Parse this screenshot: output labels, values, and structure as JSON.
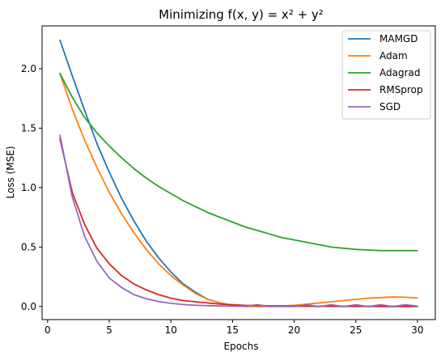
{
  "chart_data": {
    "type": "line",
    "title": "Minimizing f(x, y) = x² + y²",
    "xlabel": "Epochs",
    "ylabel": "Loss (MSE)",
    "xlim": [
      -0.45,
      31.45
    ],
    "ylim": [
      -0.11,
      2.36
    ],
    "xticks": [
      0,
      5,
      10,
      15,
      20,
      25,
      30
    ],
    "yticks": [
      0.0,
      0.5,
      1.0,
      1.5,
      2.0
    ],
    "xtick_labels": [
      "0",
      "5",
      "10",
      "15",
      "20",
      "25",
      "30"
    ],
    "ytick_labels": [
      "0.0",
      "0.5",
      "1.0",
      "1.5",
      "2.0"
    ],
    "grid": false,
    "legend_position": "top-right",
    "x": [
      1,
      2,
      3,
      4,
      5,
      6,
      7,
      8,
      9,
      10,
      11,
      12,
      13,
      14,
      15,
      16,
      17,
      18,
      19,
      20,
      21,
      22,
      23,
      24,
      25,
      26,
      27,
      28,
      29,
      30
    ],
    "series": [
      {
        "name": "MAMGD",
        "color": "#1f77b4",
        "values": [
          2.24,
          1.94,
          1.65,
          1.37,
          1.13,
          0.91,
          0.72,
          0.55,
          0.41,
          0.29,
          0.19,
          0.12,
          0.06,
          0.03,
          0.01,
          0.005,
          0.01,
          0.003,
          0.004,
          0.002,
          0.003,
          0.0,
          0.006,
          0.0,
          0.008,
          0.0,
          0.008,
          0.0,
          0.008,
          0.003
        ]
      },
      {
        "name": "Adam",
        "color": "#ff7f0e",
        "values": [
          1.96,
          1.66,
          1.4,
          1.17,
          0.96,
          0.78,
          0.62,
          0.48,
          0.36,
          0.26,
          0.18,
          0.11,
          0.06,
          0.03,
          0.01,
          0.0,
          0.0,
          0.0,
          0.005,
          0.01,
          0.02,
          0.03,
          0.04,
          0.05,
          0.06,
          0.07,
          0.075,
          0.08,
          0.078,
          0.072
        ]
      },
      {
        "name": "Adagrad",
        "color": "#2ca02c",
        "values": [
          1.96,
          1.76,
          1.59,
          1.46,
          1.35,
          1.25,
          1.16,
          1.08,
          1.01,
          0.95,
          0.89,
          0.84,
          0.79,
          0.75,
          0.71,
          0.67,
          0.64,
          0.61,
          0.58,
          0.56,
          0.54,
          0.52,
          0.5,
          0.49,
          0.48,
          0.475,
          0.47,
          0.47,
          0.47,
          0.47
        ]
      },
      {
        "name": "RMSprop",
        "color": "#d62728",
        "values": [
          1.41,
          0.96,
          0.69,
          0.49,
          0.36,
          0.26,
          0.19,
          0.14,
          0.1,
          0.07,
          0.05,
          0.04,
          0.03,
          0.02,
          0.015,
          0.01,
          0.008,
          0.006,
          0.005,
          0.004,
          0.003,
          0.002,
          0.002,
          0.001,
          0.001,
          0.001,
          0.0,
          0.0,
          0.0,
          0.0
        ]
      },
      {
        "name": "SGD",
        "color": "#9467bd",
        "values": [
          1.44,
          0.92,
          0.59,
          0.38,
          0.24,
          0.16,
          0.1,
          0.065,
          0.042,
          0.027,
          0.017,
          0.011,
          0.007,
          0.005,
          0.003,
          0.002,
          0.015,
          0.001,
          0.0,
          0.0,
          0.015,
          0.0,
          0.015,
          0.0,
          0.015,
          0.0,
          0.015,
          0.0,
          0.015,
          0.003
        ]
      }
    ]
  }
}
